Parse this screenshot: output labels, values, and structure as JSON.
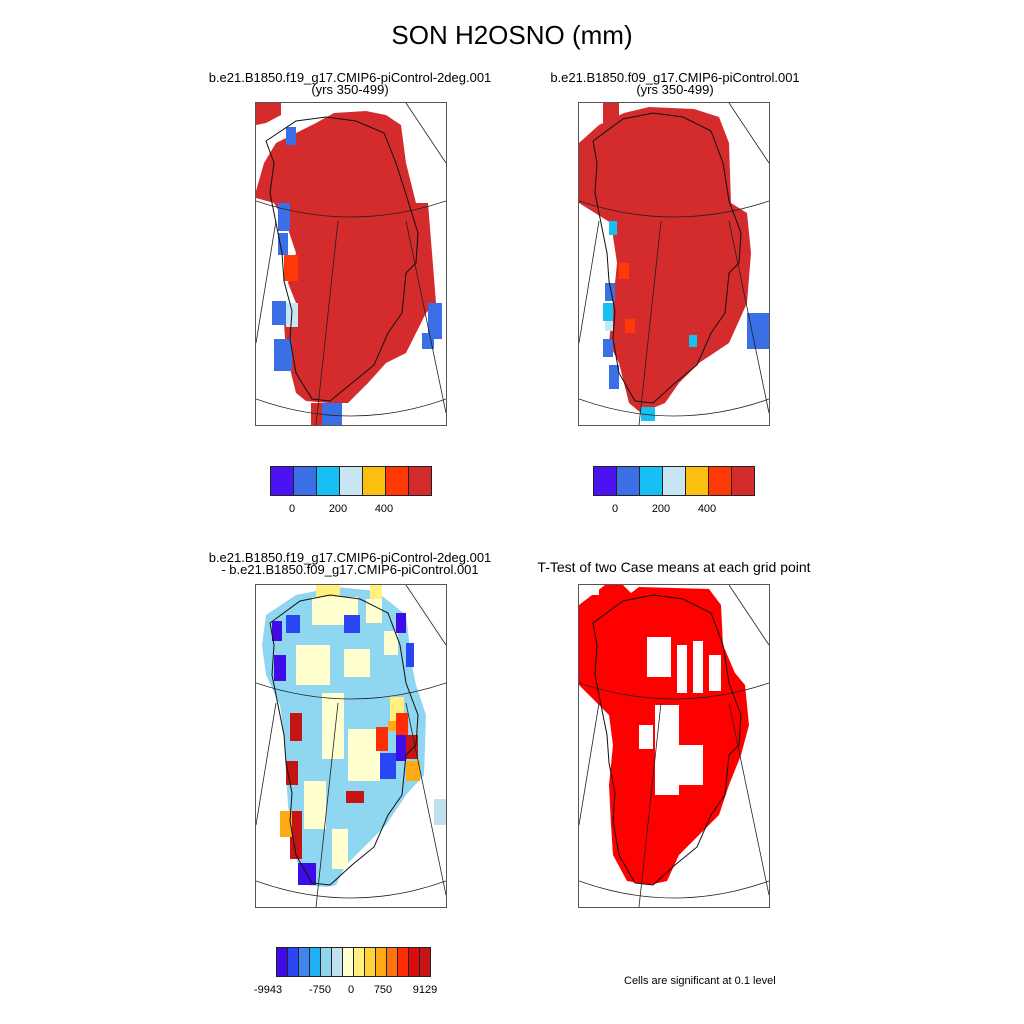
{
  "title": "SON H2OSNO (mm)",
  "panels": {
    "case1": {
      "line1": "b.e21.B1850.f19_g17.CMIP6-piControl-2deg.001",
      "line2": "(yrs 350-499)"
    },
    "case2": {
      "line1": "b.e21.B1850.f09_g17.CMIP6-piControl.001",
      "line2": "(yrs 350-499)"
    },
    "diff": {
      "line1": "b.e21.B1850.f19_g17.CMIP6-piControl-2deg.001",
      "line2": "- b.e21.B1850.f09_g17.CMIP6-piControl.001"
    },
    "ttest": {
      "line1": "T-Test of two Case means at each grid point"
    }
  },
  "colorbar_main": {
    "colors": [
      "#4b12f2",
      "#3a6fe6",
      "#17c0f2",
      "#c8e6f2",
      "#fbbf10",
      "#ff3a06",
      "#d42b2d"
    ],
    "tick_labels": [
      "0",
      "200",
      "400"
    ]
  },
  "colorbar_diff": {
    "colors": [
      "#3f0ce8",
      "#2a45f2",
      "#3f86ec",
      "#1eb0f2",
      "#8fd6f0",
      "#c2e1ee",
      "#ffffd0",
      "#fff080",
      "#ffd23c",
      "#ffaa14",
      "#ff7210",
      "#ff2c08",
      "#dc0c0c",
      "#c41414"
    ],
    "tick_labels": [
      "-9943",
      "-750",
      "0",
      "750",
      "9129"
    ]
  },
  "significance_note": "Cells are significant at 0.1 level",
  "colors": {
    "snow_max": "#d42b2d",
    "significant": "#ff0000"
  }
}
